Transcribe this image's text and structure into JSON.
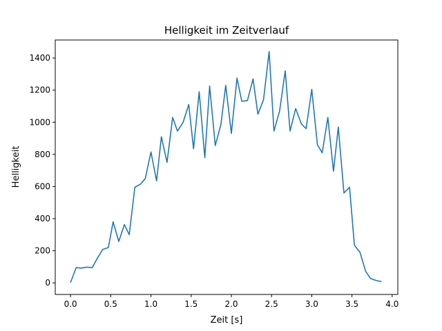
{
  "chart_data": {
    "type": "line",
    "title": "Helligkeit im Zeitverlauf",
    "xlabel": "Zeit [s]",
    "ylabel": "Helligkeit",
    "xlim": [
      -0.19,
      4.07
    ],
    "ylim": [
      -72,
      1512
    ],
    "xticks": [
      0.0,
      0.5,
      1.0,
      1.5,
      2.0,
      2.5,
      3.0,
      3.5,
      4.0
    ],
    "xtick_labels": [
      "0.0",
      "0.5",
      "1.0",
      "1.5",
      "2.0",
      "2.5",
      "3.0",
      "3.5",
      "4.0"
    ],
    "yticks": [
      0,
      200,
      400,
      600,
      800,
      1000,
      1200,
      1400
    ],
    "ytick_labels": [
      "0",
      "200",
      "400",
      "600",
      "800",
      "1000",
      "1200",
      "1400"
    ],
    "grid": false,
    "series": [
      {
        "name": "Helligkeit",
        "color": "#1f77b4",
        "x": [
          0.0,
          0.07,
          0.13,
          0.2,
          0.27,
          0.33,
          0.4,
          0.47,
          0.53,
          0.6,
          0.67,
          0.73,
          0.8,
          0.87,
          0.93,
          1.0,
          1.07,
          1.13,
          1.2,
          1.27,
          1.33,
          1.4,
          1.47,
          1.53,
          1.6,
          1.67,
          1.73,
          1.8,
          1.87,
          1.93,
          2.0,
          2.07,
          2.13,
          2.2,
          2.27,
          2.33,
          2.4,
          2.47,
          2.53,
          2.6,
          2.67,
          2.73,
          2.8,
          2.87,
          2.93,
          3.0,
          3.07,
          3.13,
          3.2,
          3.27,
          3.33,
          3.4,
          3.47,
          3.53,
          3.6,
          3.67,
          3.73,
          3.8,
          3.87
        ],
        "y": [
          2,
          95,
          92,
          98,
          95,
          150,
          208,
          220,
          380,
          258,
          363,
          300,
          595,
          615,
          650,
          815,
          635,
          910,
          750,
          1030,
          945,
          1000,
          1110,
          835,
          1190,
          780,
          1225,
          855,
          985,
          1230,
          930,
          1275,
          1130,
          1135,
          1270,
          1050,
          1140,
          1440,
          945,
          1070,
          1320,
          945,
          1085,
          990,
          960,
          1205,
          860,
          810,
          1030,
          695,
          970,
          560,
          595,
          235,
          190,
          72,
          28,
          15,
          8
        ]
      }
    ]
  }
}
